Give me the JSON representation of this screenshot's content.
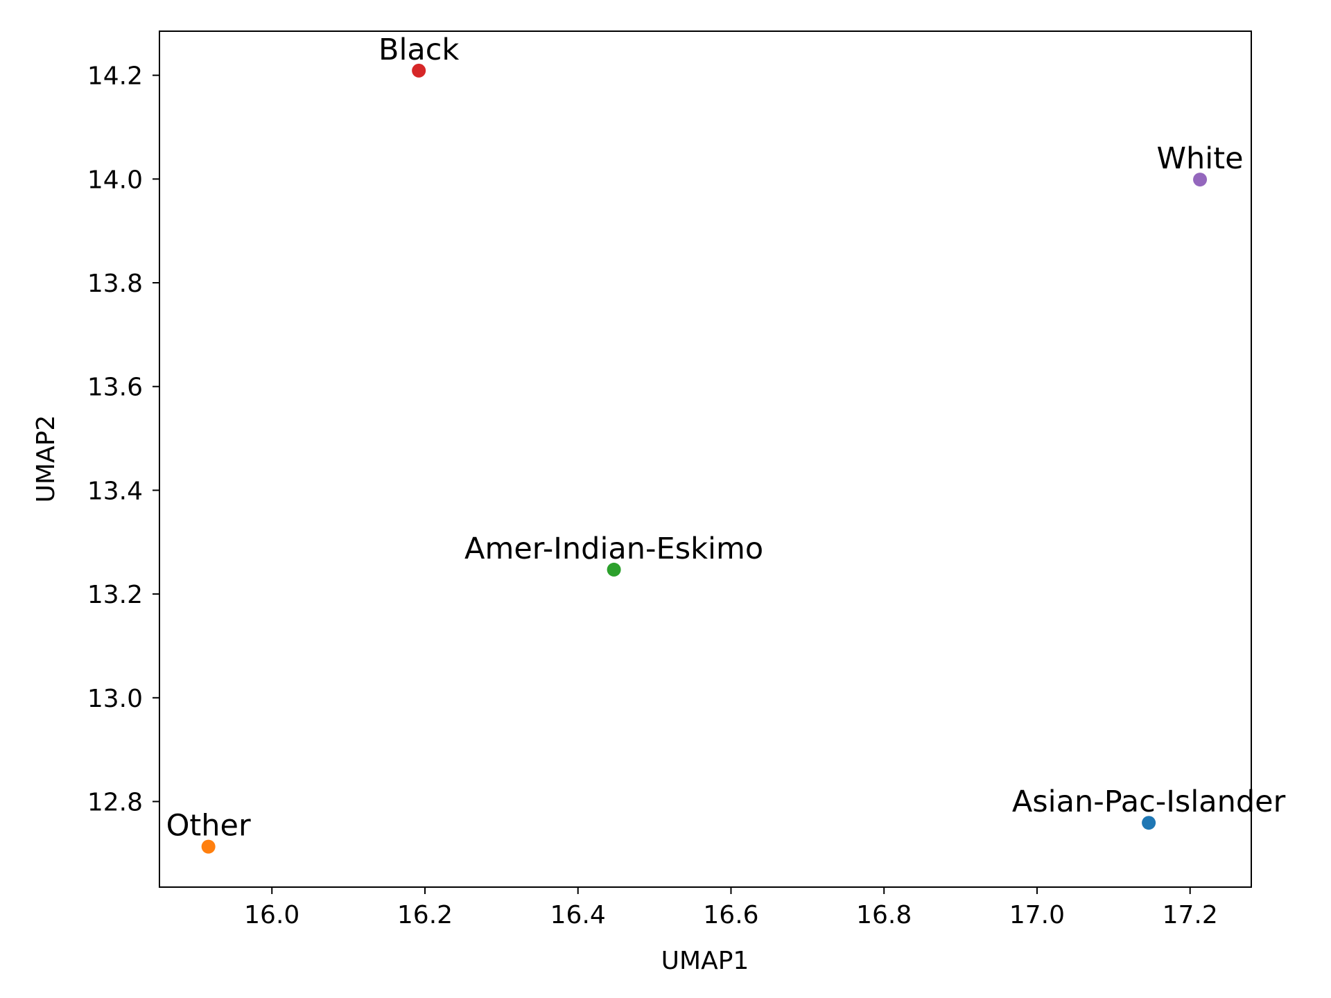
{
  "chart_data": {
    "type": "scatter",
    "title": "",
    "xlabel": "UMAP1",
    "ylabel": "UMAP2",
    "xlim": [
      15.853,
      17.28
    ],
    "ylim": [
      12.635,
      14.285
    ],
    "xticks": [
      16.0,
      16.2,
      16.4,
      16.6,
      16.8,
      17.0,
      17.2
    ],
    "xtick_labels": [
      "16.0",
      "16.2",
      "16.4",
      "16.6",
      "16.8",
      "17.0",
      "17.2"
    ],
    "yticks": [
      12.8,
      13.0,
      13.2,
      13.4,
      13.6,
      13.8,
      14.0,
      14.2
    ],
    "ytick_labels": [
      "12.8",
      "13.0",
      "13.2",
      "13.4",
      "13.6",
      "13.8",
      "14.0",
      "14.2"
    ],
    "grid": false,
    "legend": "none",
    "points": [
      {
        "label": "Asian-Pac-Islander",
        "x": 17.146,
        "y": 12.759,
        "color": "#1f77b4"
      },
      {
        "label": "Other",
        "x": 15.917,
        "y": 12.713,
        "color": "#ff7f0e"
      },
      {
        "label": "Amer-Indian-Eskimo",
        "x": 16.447,
        "y": 13.247,
        "color": "#2ca02c"
      },
      {
        "label": "Black",
        "x": 16.192,
        "y": 14.209,
        "color": "#d62728"
      },
      {
        "label": "White",
        "x": 17.213,
        "y": 13.999,
        "color": "#9467bd"
      }
    ]
  }
}
